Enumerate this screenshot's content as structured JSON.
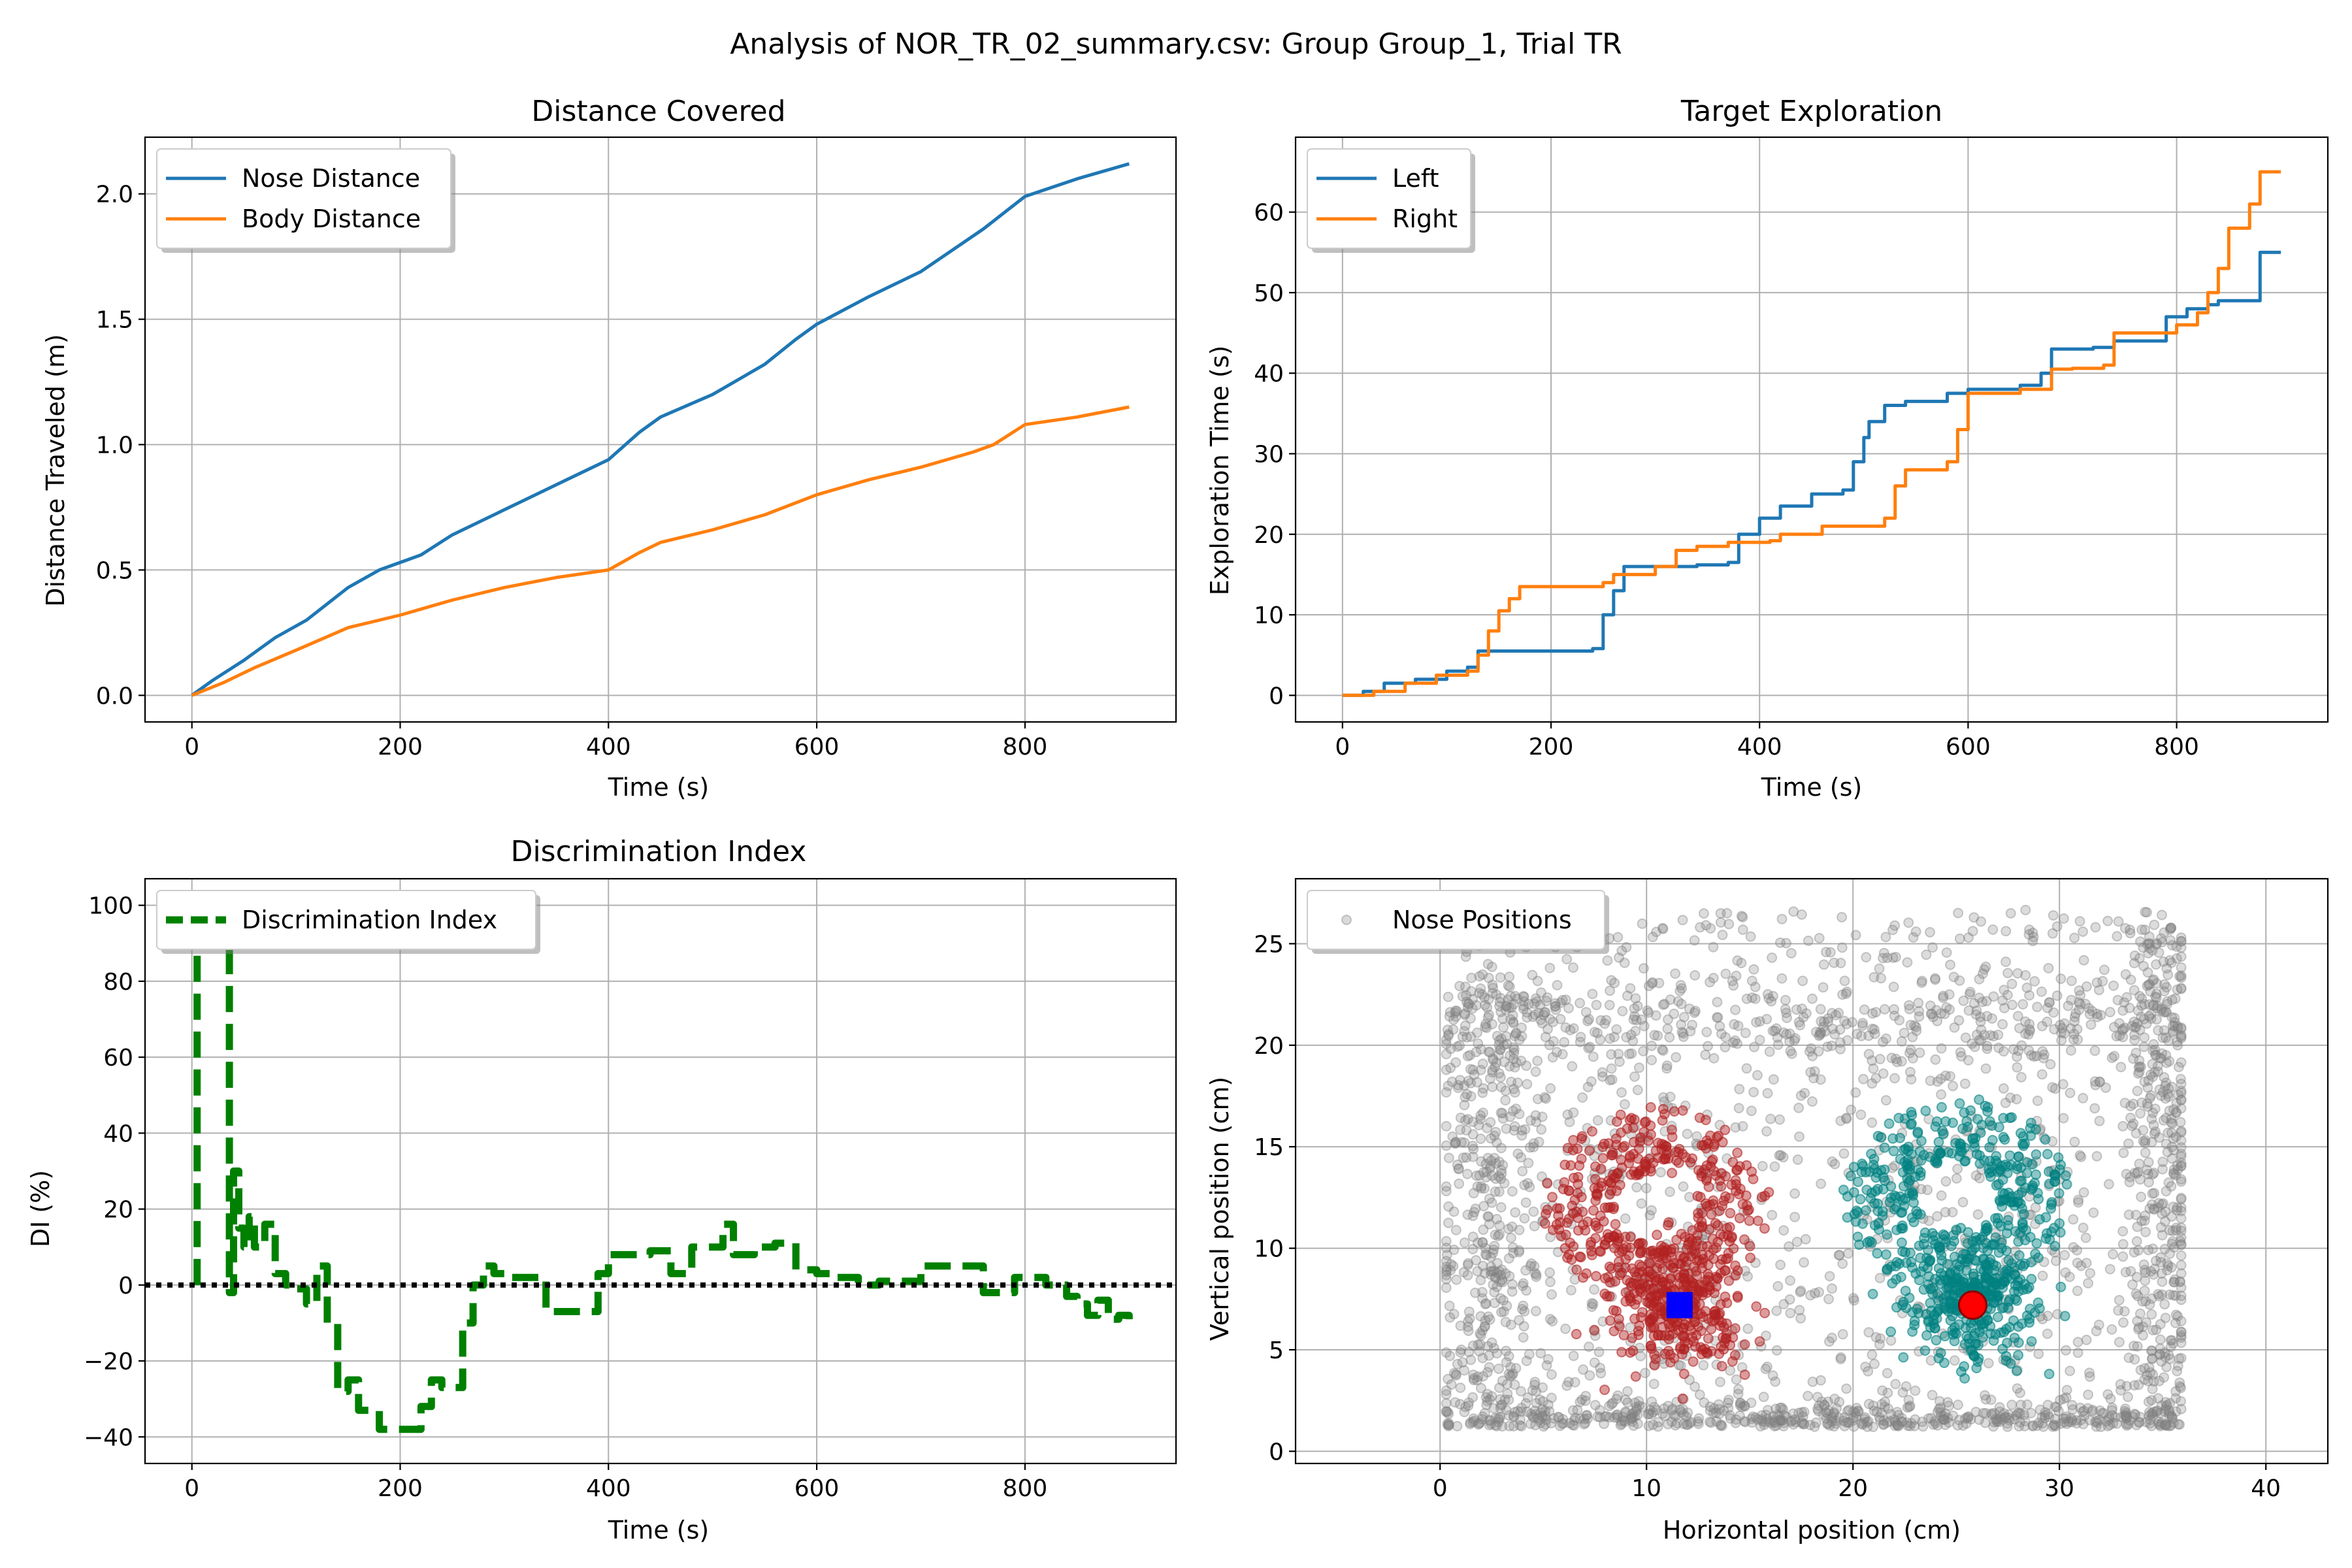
{
  "figure": {
    "suptitle": "Analysis of NOR_TR_02_summary.csv: Group Group_1, Trial TR"
  },
  "chart_data": [
    {
      "id": "distance",
      "type": "line",
      "title": "Distance Covered",
      "xlabel": "Time (s)",
      "ylabel": "Distance Traveled (m)",
      "xlim": [
        -45,
        945
      ],
      "ylim": [
        -0.106,
        2.226
      ],
      "xticks": [
        0,
        200,
        400,
        600,
        800
      ],
      "yticks": [
        0.0,
        0.5,
        1.0,
        1.5,
        2.0
      ],
      "ytick_labels": [
        "0.0",
        "0.5",
        "1.0",
        "1.5",
        "2.0"
      ],
      "grid": true,
      "legend_position": "upper left",
      "series": [
        {
          "name": "Nose Distance",
          "color": "#1f77b4",
          "x": [
            0,
            20,
            50,
            80,
            110,
            150,
            180,
            200,
            220,
            250,
            300,
            350,
            400,
            430,
            450,
            500,
            550,
            580,
            600,
            650,
            700,
            760,
            800,
            850,
            900
          ],
          "y": [
            0,
            0.06,
            0.14,
            0.23,
            0.3,
            0.43,
            0.5,
            0.53,
            0.56,
            0.64,
            0.74,
            0.84,
            0.94,
            1.05,
            1.11,
            1.2,
            1.32,
            1.42,
            1.48,
            1.59,
            1.69,
            1.86,
            1.99,
            2.06,
            2.12
          ]
        },
        {
          "name": "Body Distance",
          "color": "#ff7f0e",
          "x": [
            0,
            30,
            60,
            100,
            150,
            200,
            250,
            300,
            350,
            400,
            430,
            450,
            500,
            550,
            600,
            650,
            700,
            750,
            770,
            800,
            850,
            900
          ],
          "y": [
            0,
            0.05,
            0.11,
            0.18,
            0.27,
            0.32,
            0.38,
            0.43,
            0.47,
            0.5,
            0.57,
            0.61,
            0.66,
            0.72,
            0.8,
            0.86,
            0.91,
            0.97,
            1.0,
            1.08,
            1.11,
            1.15
          ]
        }
      ]
    },
    {
      "id": "exploration",
      "type": "line",
      "title": "Target Exploration",
      "xlabel": "Time (s)",
      "ylabel": "Exploration Time (s)",
      "xlim": [
        -45,
        945
      ],
      "ylim": [
        -3.3,
        69.3
      ],
      "xticks": [
        0,
        200,
        400,
        600,
        800
      ],
      "yticks": [
        0,
        10,
        20,
        30,
        40,
        50,
        60
      ],
      "grid": true,
      "legend_position": "upper left",
      "series": [
        {
          "name": "Left",
          "color": "#1f77b4",
          "x": [
            0,
            20,
            40,
            70,
            100,
            120,
            130,
            200,
            240,
            250,
            260,
            270,
            340,
            370,
            380,
            400,
            420,
            450,
            480,
            490,
            500,
            505,
            520,
            540,
            580,
            600,
            650,
            670,
            680,
            720,
            740,
            790,
            810,
            830,
            840,
            870,
            880,
            900
          ],
          "y": [
            0,
            0.5,
            1.5,
            2.0,
            3.0,
            3.5,
            5.5,
            5.5,
            5.8,
            10,
            13,
            16,
            16.2,
            16.5,
            20,
            22,
            23.5,
            25,
            25.5,
            29,
            32,
            34,
            36,
            36.5,
            37.5,
            38,
            38.5,
            40,
            43,
            43.2,
            44,
            47,
            48,
            48.5,
            49,
            49,
            55,
            55
          ]
        },
        {
          "name": "Right",
          "color": "#ff7f0e",
          "x": [
            0,
            30,
            60,
            90,
            120,
            130,
            140,
            150,
            160,
            170,
            230,
            250,
            260,
            300,
            320,
            340,
            370,
            410,
            420,
            460,
            480,
            520,
            530,
            540,
            560,
            580,
            590,
            600,
            650,
            680,
            700,
            730,
            740,
            780,
            800,
            820,
            830,
            840,
            850,
            870,
            880,
            900
          ],
          "y": [
            0,
            0.5,
            1.5,
            2.5,
            3.0,
            5.0,
            8.0,
            10.5,
            12.0,
            13.5,
            13.5,
            14.0,
            15.0,
            16.0,
            18.0,
            18.5,
            19.0,
            19.2,
            20.0,
            21.0,
            21.0,
            22.0,
            26.0,
            28.0,
            28.0,
            29.0,
            33.0,
            37.5,
            38.0,
            40.5,
            40.6,
            41.0,
            45.0,
            45.0,
            46.0,
            47.5,
            50.0,
            53.0,
            58.0,
            61.0,
            65.0,
            65.0
          ]
        }
      ]
    },
    {
      "id": "di",
      "type": "line",
      "title": "Discrimination Index",
      "xlabel": "Time (s)",
      "ylabel": "DI (%)",
      "xlim": [
        -45,
        945
      ],
      "ylim": [
        -47,
        107
      ],
      "xticks": [
        0,
        200,
        400,
        600,
        800
      ],
      "yticks": [
        -40,
        -20,
        0,
        20,
        40,
        60,
        80,
        100
      ],
      "grid": true,
      "legend_position": "upper left",
      "series": [
        {
          "name": "Discrimination Index",
          "color": "#008000",
          "style": "dashed",
          "x": [
            5,
            5,
            10,
            15,
            20,
            25,
            30,
            33,
            36,
            40,
            45,
            50,
            55,
            60,
            70,
            80,
            90,
            100,
            110,
            120,
            130,
            140,
            150,
            160,
            180,
            200,
            210,
            220,
            230,
            240,
            250,
            260,
            270,
            280,
            290,
            300,
            320,
            340,
            360,
            380,
            390,
            400,
            420,
            440,
            460,
            480,
            500,
            510,
            520,
            540,
            560,
            580,
            600,
            620,
            640,
            660,
            700,
            740,
            760,
            790,
            820,
            840,
            850,
            860,
            870,
            880,
            890,
            900
          ],
          "y": [
            0,
            100,
            100,
            100,
            100,
            100,
            100,
            100,
            -2,
            30,
            15,
            10,
            18,
            10,
            16,
            3,
            0,
            -1,
            -5,
            5,
            -10,
            -28,
            -25,
            -33,
            -38,
            -38,
            -38,
            -32,
            -25,
            -27,
            -27,
            -10,
            0,
            5,
            3,
            2,
            2,
            -7,
            -7,
            -7,
            3,
            8,
            8,
            9,
            3,
            10,
            10,
            16,
            8,
            10,
            11,
            4,
            3,
            2,
            0,
            1,
            5,
            5,
            -2,
            2,
            0,
            -3,
            -5,
            -8,
            -4,
            -9,
            -8,
            -9
          ]
        },
        {
          "name": "",
          "color": "#000000",
          "style": "dotted",
          "x": [
            -45,
            945
          ],
          "y": [
            0,
            0
          ]
        }
      ]
    },
    {
      "id": "positions",
      "type": "scatter",
      "title": "",
      "xlabel": "Horizontal position (cm)",
      "ylabel": "Vertical position (cm)",
      "xlim": [
        -7,
        43
      ],
      "ylim": [
        -0.6,
        28.2
      ],
      "xticks": [
        0,
        10,
        20,
        30,
        40
      ],
      "yticks": [
        0,
        5,
        10,
        15,
        20,
        25
      ],
      "grid": true,
      "legend_position": "upper left",
      "arena": {
        "x": [
          0.3,
          35.9
        ],
        "y": [
          1.2,
          26.9
        ]
      },
      "series": [
        {
          "name": "Nose Positions",
          "color": "#808080",
          "count": 2600
        },
        {
          "name": "",
          "color": "#b22222",
          "count": 700,
          "center": [
            10.5,
            10.5
          ]
        },
        {
          "name": "",
          "color": "#008080",
          "count": 700,
          "center": [
            25.0,
            11.0
          ]
        }
      ],
      "markers": [
        {
          "shape": "square",
          "color": "#0000ff",
          "x": 11.6,
          "y": 7.2
        },
        {
          "shape": "circle",
          "color": "#ff0000",
          "x": 25.8,
          "y": 7.2
        }
      ]
    }
  ]
}
